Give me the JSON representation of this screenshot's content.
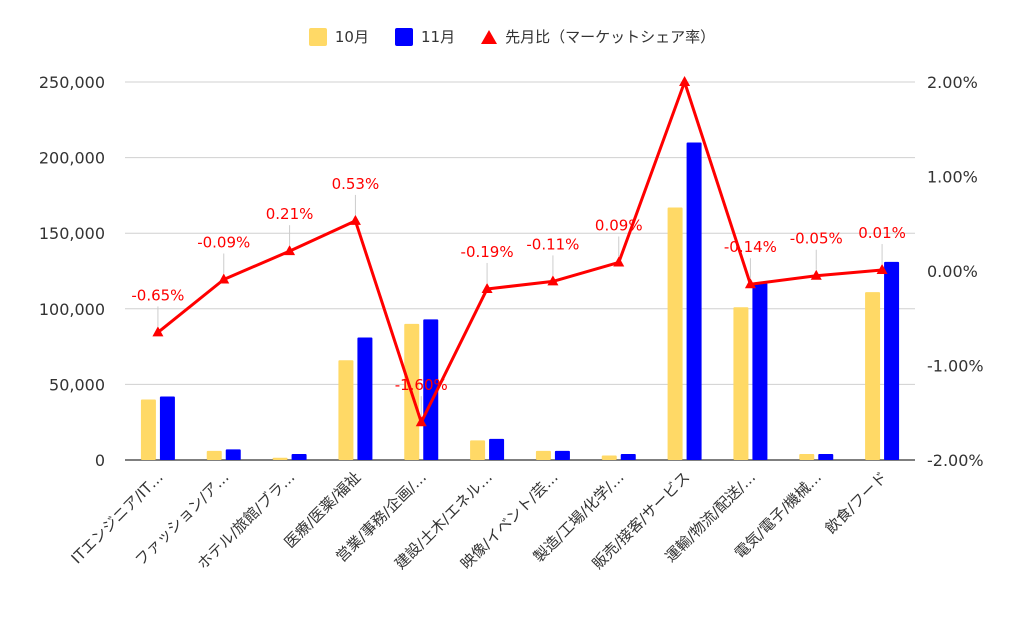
{
  "chart_data": {
    "type": "bar",
    "categories": [
      "ITエンジニア/IT…",
      "ファッション/ア…",
      "ホテル/旅館/ブラ…",
      "医療/医薬/福祉",
      "営業/事務/企画/…",
      "建設/土木/エネル…",
      "映像/イベント/芸…",
      "製造/工場/化学/…",
      "販売/接客/サービス",
      "運輸/物流/配送/…",
      "電気/電子/機械…",
      "飲食/フード"
    ],
    "series": [
      {
        "name": "10月",
        "type": "bar",
        "axis": "left",
        "color": "#ffd966",
        "values": [
          40000,
          6000,
          1500,
          66000,
          90000,
          13000,
          6000,
          3000,
          167000,
          101000,
          4000,
          111000
        ]
      },
      {
        "name": "11月",
        "type": "bar",
        "axis": "left",
        "color": "#0000ff",
        "values": [
          42000,
          7000,
          4000,
          81000,
          93000,
          14000,
          6000,
          4000,
          210000,
          117000,
          4000,
          131000
        ]
      },
      {
        "name": "先月比（マーケットシェア率）",
        "type": "line",
        "axis": "right",
        "color": "#ff0000",
        "values": [
          -0.65,
          -0.09,
          0.21,
          0.53,
          -1.6,
          -0.19,
          -0.11,
          0.09,
          2.0,
          -0.14,
          -0.05,
          0.01
        ],
        "labels": [
          "-0.65%",
          "-0.09%",
          "0.21%",
          "0.53%",
          "-1.60%",
          "-0.19%",
          "-0.11%",
          "0.09%",
          "",
          "-0.14%",
          "-0.05%",
          "0.01%"
        ]
      }
    ],
    "y_left": {
      "min": 0,
      "max": 250000,
      "ticks": [
        0,
        50000,
        100000,
        150000,
        200000,
        250000
      ],
      "tick_labels": [
        "0",
        "50,000",
        "100,000",
        "150,000",
        "200,000",
        "250,000"
      ]
    },
    "y_right": {
      "min": -2.0,
      "max": 2.0,
      "ticks": [
        -2,
        -1,
        0,
        1,
        2
      ],
      "tick_labels": [
        "-2.00%",
        "-1.00%",
        "0.00%",
        "1.00%",
        "2.00%"
      ]
    },
    "grid": true,
    "legend_position": "top-center"
  }
}
